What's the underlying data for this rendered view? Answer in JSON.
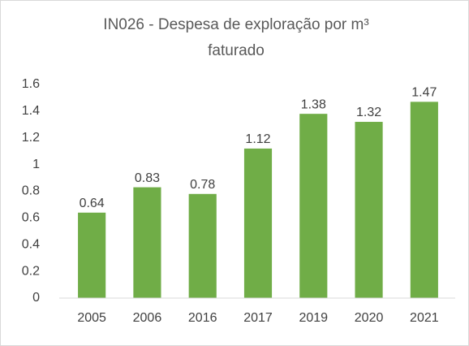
{
  "chart_data": {
    "type": "bar",
    "title": "IN026 - Despesa de exploração por m³ faturado",
    "categories": [
      "2005",
      "2006",
      "2016",
      "2017",
      "2019",
      "2020",
      "2021"
    ],
    "values": [
      0.64,
      0.83,
      0.78,
      1.12,
      1.38,
      1.32,
      1.47
    ],
    "color": "#70ad47",
    "ylim": [
      0,
      1.6
    ],
    "yticks": [
      0,
      0.2,
      0.4,
      0.6,
      0.8,
      1,
      1.2,
      1.4,
      1.6
    ],
    "grid": false
  }
}
